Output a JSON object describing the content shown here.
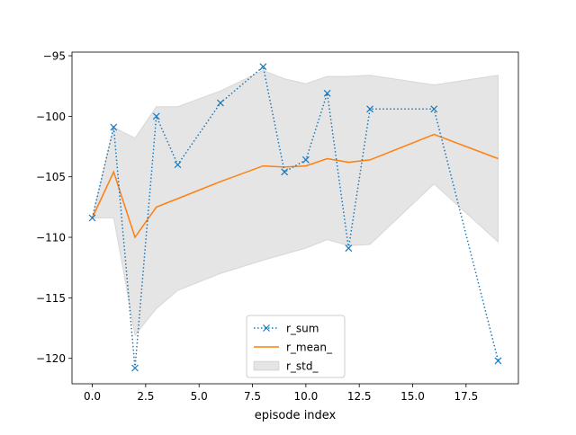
{
  "chart_data": {
    "type": "line",
    "xlabel": "episode index",
    "ylabel": "",
    "xlim": [
      -0.95,
      19.95
    ],
    "ylim": [
      -122.1,
      -94.7
    ],
    "grid": false,
    "legend_position": "lower-center",
    "x_ticks": [
      0.0,
      2.5,
      5.0,
      7.5,
      10.0,
      12.5,
      15.0,
      17.5
    ],
    "x_tick_labels": [
      "0.0",
      "2.5",
      "5.0",
      "7.5",
      "10.0",
      "12.5",
      "15.0",
      "17.5"
    ],
    "y_ticks": [
      -120,
      -115,
      -110,
      -105,
      -100,
      -95
    ],
    "y_tick_labels": [
      "−120",
      "−115",
      "−110",
      "−105",
      "−100",
      "−95"
    ],
    "series": [
      {
        "name": "r_sum",
        "style": "dotted-x",
        "color": "#1f77b4",
        "x": [
          0,
          1,
          2,
          3,
          4,
          6,
          8,
          9,
          10,
          11,
          12,
          13,
          16,
          19
        ],
        "values": [
          -108.4,
          -100.9,
          -120.8,
          -100.0,
          -104.0,
          -98.9,
          -95.9,
          -104.6,
          -103.6,
          -98.1,
          -110.9,
          -99.4,
          -99.4,
          -120.2
        ]
      },
      {
        "name": "r_mean_",
        "style": "solid",
        "color": "#ff7f0e",
        "x": [
          0,
          1,
          2,
          3,
          4,
          6,
          8,
          9,
          10,
          11,
          12,
          13,
          16,
          19
        ],
        "values": [
          -108.4,
          -104.6,
          -110.0,
          -107.5,
          -106.8,
          -105.4,
          -104.1,
          -104.2,
          -104.1,
          -103.5,
          -103.8,
          -103.6,
          -101.5,
          -103.5
        ]
      },
      {
        "name": "r_std_",
        "style": "band",
        "color": "#d9d9d9",
        "x": [
          0,
          1,
          2,
          3,
          4,
          6,
          8,
          9,
          10,
          11,
          12,
          13,
          16,
          19
        ],
        "upper": [
          -108.4,
          -100.9,
          -101.8,
          -99.2,
          -99.2,
          -97.9,
          -96.2,
          -96.9,
          -97.3,
          -96.7,
          -96.7,
          -96.6,
          -97.4,
          -96.6
        ],
        "lower": [
          -108.4,
          -108.4,
          -118.1,
          -115.9,
          -114.4,
          -113.0,
          -111.9,
          -111.4,
          -110.9,
          -110.2,
          -110.7,
          -110.6,
          -105.6,
          -110.4
        ]
      }
    ]
  }
}
